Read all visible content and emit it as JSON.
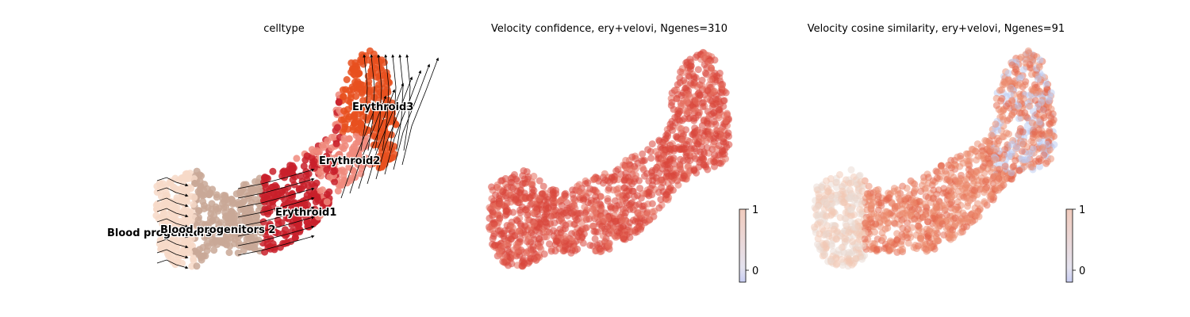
{
  "chart_data": [
    {
      "type": "scatter",
      "title": "celltype",
      "overlay": "velocity streamlines (black arrows)",
      "series": [
        {
          "name": "Blood progenitors 1",
          "color": "#f7d9c8"
        },
        {
          "name": "Blood progenitors 2",
          "color": "#c9a897"
        },
        {
          "name": "Erythroid1",
          "color": "#c9202a"
        },
        {
          "name": "Erythroid2",
          "color": "#f08a7c"
        },
        {
          "name": "Erythroid3",
          "color": "#e8501e"
        }
      ],
      "labels": {
        "bp1": "Blood progenitors 1",
        "bp2": "Blood progenitors 2",
        "e1": "Erythroid1",
        "e2": "Erythroid2",
        "e3": "Erythroid3"
      },
      "axes": "off",
      "legend": "on data"
    },
    {
      "type": "scatter",
      "title": "Velocity confidence, ery+velovi, Ngenes=310",
      "colormap": "coolwarm",
      "colorbar": {
        "ticks": [
          "1",
          "0"
        ],
        "range": [
          -0.2,
          1
        ]
      },
      "color_note": "nearly all cells red (high confidence)",
      "axes": "off"
    },
    {
      "type": "scatter",
      "title": "Velocity cosine similarity, ery+velovi, Ngenes=91",
      "colormap": "coolwarm",
      "colorbar": {
        "ticks": [
          "1",
          "0"
        ],
        "range": [
          -0.2,
          1
        ]
      },
      "color_note": "mostly salmon/red, lighter at left lobe, bluish at upper-right edges",
      "axes": "off"
    }
  ]
}
